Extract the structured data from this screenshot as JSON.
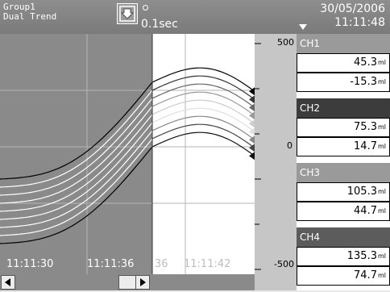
{
  "header": {
    "group_name": "Group1",
    "display_mode": "Dual Trend",
    "save_icon": "save-download-icon",
    "status_icon": "status-lamp-icon",
    "sample_rate": "0.1sec",
    "date": "30/05/2006",
    "time": "11:11:48",
    "alarm_icon": "triangle-down-icon"
  },
  "scale": {
    "max": "500",
    "zero": "0",
    "min": "-500"
  },
  "channels": [
    {
      "label": "CH1",
      "color": "#9a9a9a",
      "value_high": "45.3",
      "value_low": "-15.3",
      "unit": "ml"
    },
    {
      "label": "CH2",
      "color": "#3c3c3c",
      "value_high": "75.3",
      "value_low": "14.7",
      "unit": "ml"
    },
    {
      "label": "CH3",
      "color": "#9a9a9a",
      "value_high": "105.3",
      "value_low": "44.7",
      "unit": "ml"
    },
    {
      "label": "CH4",
      "color": "#5c5c5c",
      "value_high": "135.3",
      "value_low": "74.7",
      "unit": "ml"
    }
  ],
  "time_axis": {
    "labels": [
      "11:11:30",
      "11:11:36",
      "36",
      "11:11:42"
    ]
  },
  "scrollbar": {
    "left_icon": "arrow-left-icon",
    "right_icon": "arrow-right-icon",
    "thumb_icon": "scroll-thumb-icon"
  },
  "colors": {
    "header_bg": "#808080",
    "history_bg": "#8a8a8a",
    "live_bg": "#ffffff",
    "scale_bg": "#c6c6c6"
  }
}
